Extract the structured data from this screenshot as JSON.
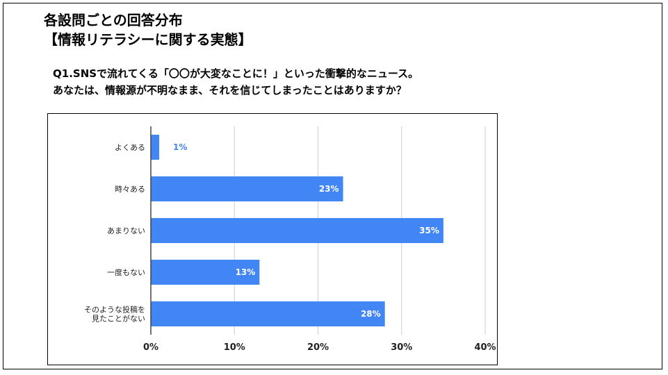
{
  "slide": {
    "title_line1": "各設問ごとの回答分布",
    "title_line2": "【情報リテラシーに関する実態】",
    "question_line1": "Q1.SNSで流れてくる「〇〇が大変なことに！」といった衝撃的なニュース。",
    "question_line2": "あなたは、情報源が不明なまま、それを信じてしまったことはありますか？"
  },
  "chart_data": {
    "type": "bar",
    "orientation": "horizontal",
    "categories": [
      [
        "よくある"
      ],
      [
        "時々ある"
      ],
      [
        "あまりない"
      ],
      [
        "一度もない"
      ],
      [
        "そのような投稿を",
        "見たことがない"
      ]
    ],
    "values": [
      1,
      23,
      35,
      13,
      28
    ],
    "value_labels": [
      "1%",
      "23%",
      "35%",
      "13%",
      "28%"
    ],
    "xlim": [
      0,
      40
    ],
    "xticks": [
      0,
      10,
      20,
      30,
      40
    ],
    "xtick_labels": [
      "0%",
      "10%",
      "20%",
      "30%",
      "40%"
    ],
    "grid": true,
    "bar_color": "#4285f4",
    "label_inside_color": "#ffffff",
    "label_outside_color": "#4285f4",
    "gridline_color": "#cccccc",
    "axis_color": "#444444"
  }
}
